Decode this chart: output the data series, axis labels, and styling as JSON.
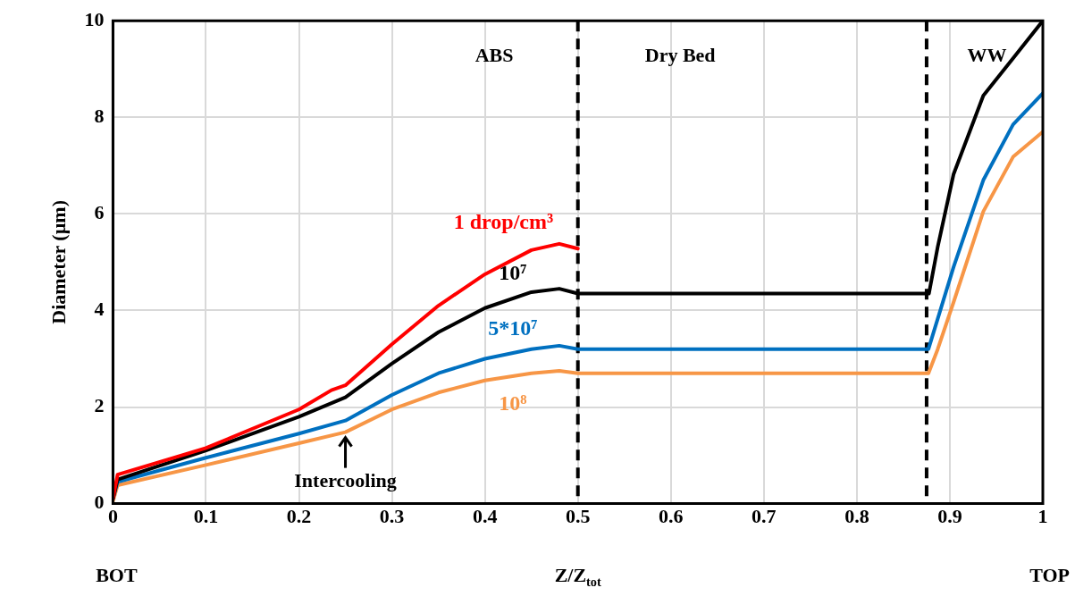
{
  "chart_data": {
    "type": "line",
    "xlabel": "Z/Z$_{tot}$",
    "ylabel": "Diameter (µm)",
    "xlim": [
      0,
      1
    ],
    "xticks": [
      0,
      0.1,
      0.2,
      0.3,
      0.4,
      0.5,
      0.6,
      0.7,
      0.8,
      0.9,
      1
    ],
    "ylim": [
      0,
      10
    ],
    "yticks": [
      0,
      2,
      4,
      6,
      8,
      10
    ],
    "grid": true,
    "marker": "none",
    "line_style": "solid",
    "series": [
      {
        "name": "1 drop/cm³",
        "color": "#ff0000",
        "x": [
          0,
          0.005,
          0.1,
          0.2,
          0.235,
          0.25,
          0.3,
          0.35,
          0.4,
          0.45,
          0.48,
          0.5
        ],
        "values": [
          0.1,
          0.6,
          1.15,
          1.95,
          2.35,
          2.45,
          3.3,
          4.1,
          4.75,
          5.25,
          5.38,
          5.28
        ]
      },
      {
        "name": "10⁷",
        "color": "#000000",
        "x": [
          0,
          0.005,
          0.1,
          0.2,
          0.25,
          0.3,
          0.35,
          0.4,
          0.45,
          0.48,
          0.5,
          0.8775,
          0.887,
          0.904,
          0.936,
          0.968,
          1
        ],
        "values": [
          0.1,
          0.5,
          1.1,
          1.8,
          2.2,
          2.9,
          3.55,
          4.05,
          4.38,
          4.45,
          4.35,
          4.35,
          5.32,
          6.82,
          8.45,
          9.22,
          10
        ]
      },
      {
        "name": "5*10⁷",
        "color": "#0070c0",
        "x": [
          0,
          0.005,
          0.1,
          0.2,
          0.25,
          0.3,
          0.35,
          0.4,
          0.45,
          0.48,
          0.5,
          0.877,
          0.904,
          0.936,
          0.968,
          1
        ],
        "values": [
          0.1,
          0.45,
          0.95,
          1.45,
          1.72,
          2.25,
          2.7,
          3.0,
          3.2,
          3.27,
          3.2,
          3.2,
          4.9,
          6.7,
          7.85,
          8.5
        ]
      },
      {
        "name": "10⁸",
        "color": "#f79646",
        "x": [
          0,
          0.005,
          0.1,
          0.2,
          0.25,
          0.3,
          0.35,
          0.4,
          0.45,
          0.48,
          0.5,
          0.877,
          0.887,
          0.904,
          0.936,
          0.968,
          1
        ],
        "values": [
          0.05,
          0.38,
          0.8,
          1.25,
          1.48,
          1.95,
          2.3,
          2.55,
          2.7,
          2.75,
          2.7,
          2.7,
          3.2,
          4.17,
          6.05,
          7.18,
          7.7
        ]
      }
    ],
    "ref_lines": [
      {
        "axis": "x",
        "value": 0.5,
        "color": "#000000",
        "line_style": "dashed"
      },
      {
        "axis": "x",
        "value": 0.875,
        "color": "#000000",
        "line_style": "dashed"
      }
    ],
    "annotations": [
      "BOT",
      "ABS",
      "Dry Bed",
      "WW",
      {
        "text": "Intercooling",
        "x": 0.25,
        "y": 1.48
      },
      "TOP"
    ]
  }
}
